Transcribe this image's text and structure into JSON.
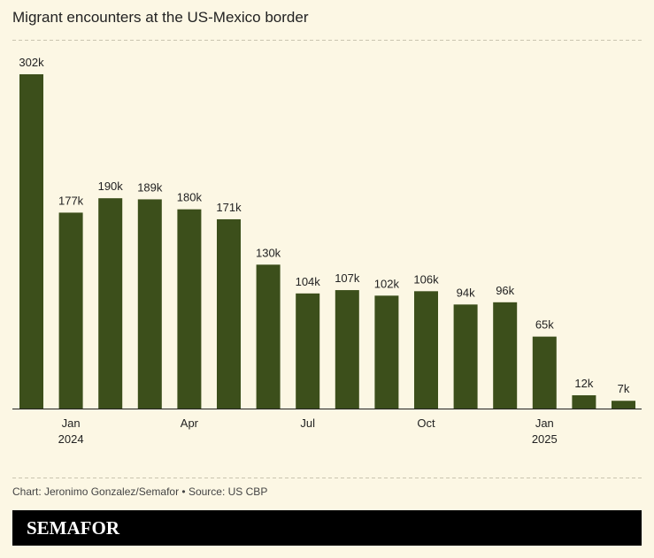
{
  "chart_data": {
    "type": "bar",
    "title": "Migrant encounters at the US-Mexico border",
    "categories": [
      null,
      "Jan",
      null,
      null,
      "Apr",
      null,
      null,
      "Jul",
      null,
      null,
      "Oct",
      null,
      null,
      "Jan",
      null,
      null
    ],
    "years": [
      null,
      "2024",
      null,
      null,
      null,
      null,
      null,
      null,
      null,
      null,
      null,
      null,
      null,
      "2025",
      null,
      null
    ],
    "values": [
      302,
      177,
      190,
      189,
      180,
      171,
      130,
      104,
      107,
      102,
      106,
      94,
      96,
      65,
      12,
      7
    ],
    "value_labels": [
      "302k",
      "177k",
      "190k",
      "189k",
      "180k",
      "171k",
      "130k",
      "104k",
      "107k",
      "102k",
      "106k",
      "94k",
      "96k",
      "65k",
      "12k",
      "7k"
    ],
    "color": "#3c4f1b",
    "source": "Chart: Jeronimo Gonzalez/Semafor • Source: US CBP",
    "brand": "SEMAFOR"
  }
}
